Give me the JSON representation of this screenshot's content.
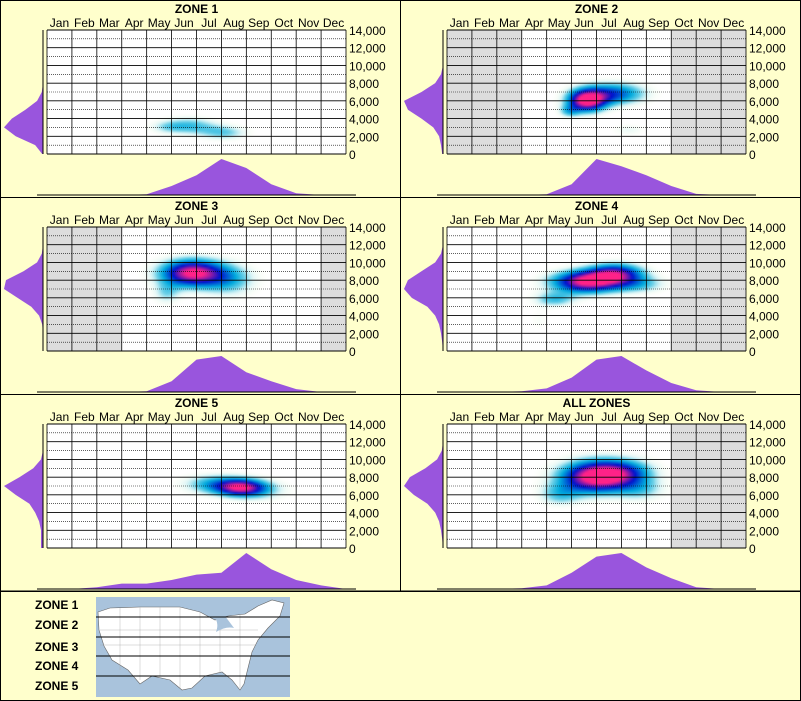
{
  "colors": {
    "background": "#ffffcc",
    "grid_shade": "#dddddd",
    "histogram": "#9955dd",
    "density_low": "#c8f0f0",
    "density_mid": "#00aadd",
    "density_high": "#0011cc",
    "density_peak": "#ff2288"
  },
  "chart_data": [
    {
      "type": "heatmap",
      "title": "ZONE 1",
      "xticks": [
        "Jan",
        "Feb",
        "Mar",
        "Apr",
        "May",
        "Jun",
        "Jul",
        "Aug",
        "Sep",
        "Oct",
        "Nov",
        "Dec"
      ],
      "yticks": [
        "14,000",
        "12,000",
        "10,000",
        "8,000",
        "6,000",
        "4,000",
        "2,000",
        "0"
      ],
      "ylim": [
        0,
        14000
      ],
      "active_months": [
        1,
        12
      ],
      "hotspots": [
        {
          "month": 6.2,
          "elev": 3200,
          "sx": 0.8,
          "sy": 700,
          "w": 0.35
        },
        {
          "month": 7.6,
          "elev": 2400,
          "sx": 0.7,
          "sy": 600,
          "w": 0.3
        },
        {
          "month": 5.3,
          "elev": 3000,
          "sx": 0.5,
          "sy": 500,
          "w": 0.15
        }
      ],
      "month_hist": [
        0,
        0,
        0,
        0,
        0.02,
        0.25,
        0.55,
        1.0,
        0.75,
        0.3,
        0.05,
        0,
        0
      ],
      "elev_hist": [
        0.02,
        0.2,
        0.7,
        1.0,
        0.8,
        0.45,
        0.15,
        0.03,
        0,
        0,
        0,
        0,
        0,
        0,
        0
      ]
    },
    {
      "type": "heatmap",
      "title": "ZONE 2",
      "xticks": [
        "Jan",
        "Feb",
        "Mar",
        "Apr",
        "May",
        "Jun",
        "Jul",
        "Aug",
        "Sep",
        "Oct",
        "Nov",
        "Dec"
      ],
      "yticks": [
        "14,000",
        "12,000",
        "10,000",
        "8,000",
        "6,000",
        "4,000",
        "2,000",
        "0"
      ],
      "ylim": [
        0,
        14000
      ],
      "active_months": [
        4,
        9
      ],
      "hotspots": [
        {
          "month": 6.1,
          "elev": 6000,
          "sx": 0.55,
          "sy": 900,
          "w": 1.0
        },
        {
          "month": 7.2,
          "elev": 6800,
          "sx": 0.9,
          "sy": 900,
          "w": 0.6
        },
        {
          "month": 5.4,
          "elev": 4800,
          "sx": 0.3,
          "sy": 500,
          "w": 0.3
        },
        {
          "month": 7.8,
          "elev": 2700,
          "sx": 0.5,
          "sy": 500,
          "w": 0.15
        }
      ],
      "month_hist": [
        0,
        0,
        0,
        0,
        0.02,
        0.3,
        1.0,
        0.8,
        0.55,
        0.25,
        0.03,
        0,
        0
      ],
      "elev_hist": [
        0.02,
        0.05,
        0.1,
        0.25,
        0.55,
        0.9,
        1.0,
        0.55,
        0.2,
        0.05,
        0,
        0,
        0,
        0,
        0
      ]
    },
    {
      "type": "heatmap",
      "title": "ZONE 3",
      "xticks": [
        "Jan",
        "Feb",
        "Mar",
        "Apr",
        "May",
        "Jun",
        "Jul",
        "Aug",
        "Sep",
        "Oct",
        "Nov",
        "Dec"
      ],
      "yticks": [
        "14,000",
        "12,000",
        "10,000",
        "8,000",
        "6,000",
        "4,000",
        "2,000",
        "0"
      ],
      "ylim": [
        0,
        14000
      ],
      "active_months": [
        4,
        11
      ],
      "hotspots": [
        {
          "month": 6.3,
          "elev": 8800,
          "sx": 0.9,
          "sy": 1100,
          "w": 1.0
        },
        {
          "month": 7.8,
          "elev": 8000,
          "sx": 0.8,
          "sy": 1300,
          "w": 0.35
        },
        {
          "month": 5.3,
          "elev": 6500,
          "sx": 0.4,
          "sy": 900,
          "w": 0.25
        }
      ],
      "month_hist": [
        0,
        0,
        0,
        0,
        0.02,
        0.3,
        0.9,
        1.0,
        0.55,
        0.3,
        0.08,
        0,
        0
      ],
      "elev_hist": [
        0,
        0,
        0,
        0.02,
        0.1,
        0.3,
        0.65,
        1.0,
        0.95,
        0.5,
        0.15,
        0.03,
        0,
        0,
        0
      ]
    },
    {
      "type": "heatmap",
      "title": "ZONE 4",
      "xticks": [
        "Jan",
        "Feb",
        "Mar",
        "Apr",
        "May",
        "Jun",
        "Jul",
        "Aug",
        "Sep",
        "Oct",
        "Nov",
        "Dec"
      ],
      "yticks": [
        "14,000",
        "12,000",
        "10,000",
        "8,000",
        "6,000",
        "4,000",
        "2,000",
        "0"
      ],
      "ylim": [
        0,
        14000
      ],
      "active_months": [
        1,
        9
      ],
      "hotspots": [
        {
          "month": 6.1,
          "elev": 7800,
          "sx": 1.0,
          "sy": 900,
          "w": 1.0
        },
        {
          "month": 7.3,
          "elev": 8800,
          "sx": 0.8,
          "sy": 800,
          "w": 0.7
        },
        {
          "month": 4.8,
          "elev": 5800,
          "sx": 0.6,
          "sy": 600,
          "w": 0.35
        },
        {
          "month": 8.2,
          "elev": 7500,
          "sx": 0.8,
          "sy": 700,
          "w": 0.3
        },
        {
          "month": 4.2,
          "elev": 3500,
          "sx": 0.3,
          "sy": 900,
          "w": 0.1
        }
      ],
      "month_hist": [
        0,
        0,
        0,
        0.02,
        0.1,
        0.4,
        0.9,
        1.0,
        0.6,
        0.25,
        0.05,
        0,
        0
      ],
      "elev_hist": [
        0,
        0.02,
        0.05,
        0.1,
        0.2,
        0.4,
        0.8,
        1.0,
        0.9,
        0.55,
        0.2,
        0.05,
        0,
        0,
        0
      ]
    },
    {
      "type": "heatmap",
      "title": "ZONE 5",
      "xticks": [
        "Jan",
        "Feb",
        "Mar",
        "Apr",
        "May",
        "Jun",
        "Jul",
        "Aug",
        "Sep",
        "Oct",
        "Nov",
        "Dec"
      ],
      "yticks": [
        "14,000",
        "12,000",
        "10,000",
        "8,000",
        "6,000",
        "4,000",
        "2,000",
        "0"
      ],
      "ylim": [
        0,
        14000
      ],
      "active_months": [
        1,
        12
      ],
      "hotspots": [
        {
          "month": 8.3,
          "elev": 6800,
          "sx": 0.7,
          "sy": 700,
          "w": 0.8
        },
        {
          "month": 7.2,
          "elev": 7200,
          "sx": 0.9,
          "sy": 800,
          "w": 0.4
        },
        {
          "month": 9.2,
          "elev": 6500,
          "sx": 0.8,
          "sy": 900,
          "w": 0.2
        },
        {
          "month": 3.8,
          "elev": 5200,
          "sx": 0.5,
          "sy": 700,
          "w": 0.08
        },
        {
          "month": 5.4,
          "elev": 3000,
          "sx": 0.4,
          "sy": 600,
          "w": 0.06
        },
        {
          "month": 10.5,
          "elev": 400,
          "sx": 0.3,
          "sy": 300,
          "w": 0.08
        }
      ],
      "month_hist": [
        0,
        0,
        0.05,
        0.15,
        0.15,
        0.25,
        0.4,
        0.45,
        1.0,
        0.55,
        0.25,
        0.1,
        0
      ],
      "elev_hist": [
        0.05,
        0.05,
        0.05,
        0.1,
        0.2,
        0.35,
        0.7,
        1.0,
        0.6,
        0.25,
        0.05,
        0,
        0,
        0,
        0
      ]
    },
    {
      "type": "heatmap",
      "title": "ALL ZONES",
      "xticks": [
        "Jan",
        "Feb",
        "Mar",
        "Apr",
        "May",
        "Jun",
        "Jul",
        "Aug",
        "Sep",
        "Oct",
        "Nov",
        "Dec"
      ],
      "yticks": [
        "14,000",
        "12,000",
        "10,000",
        "8,000",
        "6,000",
        "4,000",
        "2,000",
        "0"
      ],
      "ylim": [
        0,
        14000
      ],
      "active_months": [
        1,
        9
      ],
      "hotspots": [
        {
          "month": 6.4,
          "elev": 8000,
          "sx": 1.0,
          "sy": 1300,
          "w": 1.0
        },
        {
          "month": 7.6,
          "elev": 8500,
          "sx": 0.9,
          "sy": 1100,
          "w": 0.5
        },
        {
          "month": 5.0,
          "elev": 6000,
          "sx": 0.6,
          "sy": 900,
          "w": 0.3
        },
        {
          "month": 8.3,
          "elev": 6500,
          "sx": 0.7,
          "sy": 900,
          "w": 0.25
        }
      ],
      "month_hist": [
        0,
        0,
        0,
        0.02,
        0.1,
        0.45,
        0.9,
        1.0,
        0.6,
        0.3,
        0.05,
        0,
        0
      ],
      "elev_hist": [
        0,
        0.02,
        0.05,
        0.1,
        0.2,
        0.4,
        0.75,
        1.0,
        0.85,
        0.45,
        0.15,
        0.03,
        0,
        0,
        0
      ]
    }
  ],
  "legend": {
    "zones": [
      "ZONE 1",
      "ZONE 2",
      "ZONE 3",
      "ZONE 4",
      "ZONE 5"
    ],
    "map_icon": "usa-map-icon"
  }
}
